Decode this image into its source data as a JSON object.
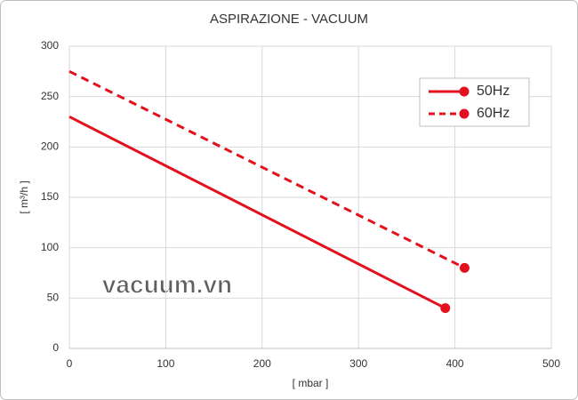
{
  "chart_data": {
    "type": "line",
    "title": "ASPIRAZIONE - VACUUM",
    "x_label": "[ mbar ]",
    "y_label": "[ m³/h ]",
    "watermark": "vacuum.vn",
    "xlim": [
      0,
      500
    ],
    "xticks": [
      0,
      100,
      200,
      300,
      400,
      500
    ],
    "ylim": [
      0,
      300
    ],
    "yticks": [
      0,
      50,
      100,
      150,
      200,
      250,
      300
    ],
    "grid": true,
    "legend": "upper right",
    "markers": "end",
    "series": [
      {
        "name": "50Hz",
        "color": "#e3101e",
        "dash": false,
        "x": [
          0,
          390
        ],
        "values": [
          230,
          40
        ]
      },
      {
        "name": "60Hz",
        "color": "#e3101e",
        "dash": true,
        "x": [
          0,
          410
        ],
        "values": [
          275,
          80
        ]
      }
    ]
  }
}
